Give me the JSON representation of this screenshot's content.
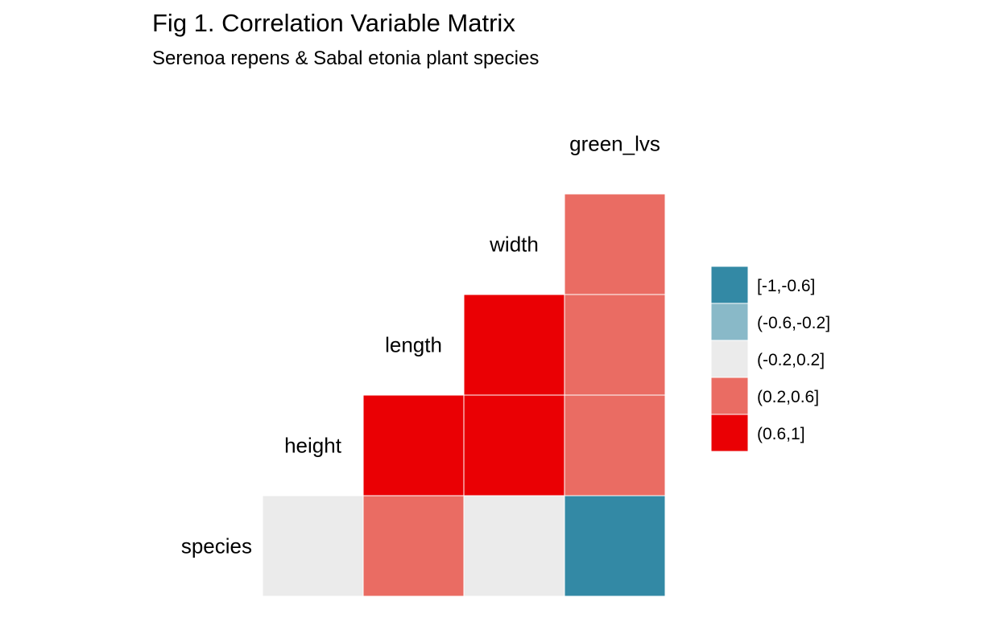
{
  "chart_data": {
    "type": "heatmap",
    "title": "Fig 1. Correlation Variable Matrix",
    "subtitle": "Serenoa repens & Sabal etonia plant species",
    "variables": [
      "species",
      "height",
      "length",
      "width",
      "green_lvs"
    ],
    "legend": {
      "placement": "right",
      "bins": [
        {
          "label": "[-1,-0.6]",
          "color": "#3389A5"
        },
        {
          "label": "(-0.6,-0.2]",
          "color": "#89B9C8"
        },
        {
          "label": "(-0.2,0.2]",
          "color": "#EBEBEB"
        },
        {
          "label": "(0.2,0.6]",
          "color": "#EA6C63"
        },
        {
          "label": "(0.6,1]",
          "color": "#EA0004"
        }
      ]
    },
    "cells": [
      {
        "row": "species",
        "col": "species",
        "bin": "(-0.2,0.2]"
      },
      {
        "row": "species",
        "col": "height",
        "bin": "(0.2,0.6]"
      },
      {
        "row": "species",
        "col": "length",
        "bin": "(-0.2,0.2]"
      },
      {
        "row": "species",
        "col": "width",
        "bin": "[-1,-0.6]"
      },
      {
        "row": "height",
        "col": "height",
        "bin": "(0.6,1]"
      },
      {
        "row": "height",
        "col": "length",
        "bin": "(0.6,1]"
      },
      {
        "row": "height",
        "col": "width",
        "bin": "(0.2,0.6]"
      },
      {
        "row": "length",
        "col": "length",
        "bin": "(0.6,1]"
      },
      {
        "row": "length",
        "col": "width",
        "bin": "(0.2,0.6]"
      },
      {
        "row": "width",
        "col": "width",
        "bin": "(0.2,0.6]"
      }
    ]
  }
}
